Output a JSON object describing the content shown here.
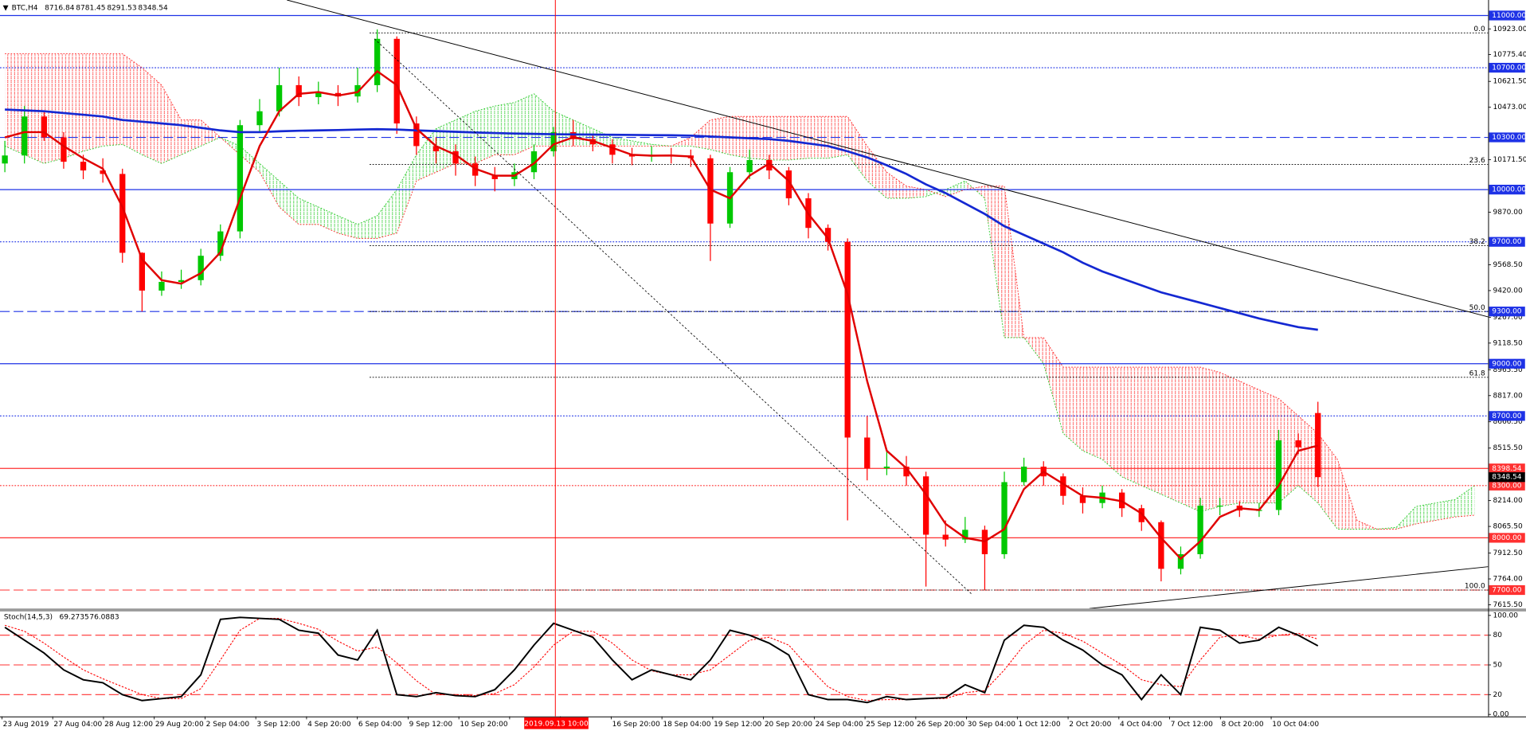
{
  "header": {
    "symbol": "BTC,H4"
  },
  "chart_data": {
    "type": "candlestick",
    "up_color": "#00c800",
    "down_color": "#ff0000",
    "open": [
      10150,
      10196,
      10420,
      10300,
      10160,
      10110,
      10090,
      9637,
      9420,
      9470,
      9480,
      9620,
      9760,
      10370,
      10450,
      10600,
      10531,
      10555,
      10535,
      10600,
      10866,
      10380,
      10250,
      10220,
      10150,
      10080,
      10060,
      10100,
      10220,
      10330,
      10290,
      10260,
      10200,
      10190,
      10200,
      10196,
      10180,
      9805,
      10100,
      10170,
      10110,
      9950,
      9780,
      9700,
      8576,
      8400,
      8409,
      8353,
      8018,
      7990,
      8046,
      7906,
      8320,
      8409,
      8353,
      8241,
      8200,
      8260,
      8170,
      8090,
      7822,
      7906,
      8185,
      8185,
      8157,
      8160,
      8560,
      8716.84
    ],
    "high": [
      10280,
      10480,
      10450,
      10330,
      10200,
      10180,
      10120,
      9640,
      9530,
      9540,
      9660,
      9800,
      10400,
      10520,
      10700,
      10650,
      10620,
      10600,
      10700,
      10920,
      10880,
      10420,
      10300,
      10260,
      10190,
      10130,
      10150,
      10260,
      10360,
      10400,
      10320,
      10290,
      10240,
      10250,
      10240,
      10230,
      10200,
      10130,
      10230,
      10200,
      10130,
      9980,
      9800,
      9720,
      8700,
      8500,
      8470,
      8380,
      8100,
      8120,
      8070,
      8380,
      8460,
      8440,
      8370,
      8290,
      8300,
      8280,
      8190,
      8100,
      7950,
      8230,
      8230,
      8210,
      8200,
      8620,
      8600,
      8781.45
    ],
    "low": [
      10100,
      10150,
      10280,
      10120,
      10060,
      10040,
      9580,
      9300,
      9390,
      9430,
      9450,
      9590,
      9720,
      10330,
      10420,
      10480,
      10490,
      10480,
      10500,
      10560,
      10320,
      10200,
      10150,
      10080,
      10020,
      9990,
      10020,
      10060,
      10190,
      10250,
      10220,
      10150,
      10140,
      10160,
      10150,
      10130,
      9590,
      9780,
      10060,
      10060,
      9910,
      9720,
      9650,
      8100,
      8330,
      8360,
      8300,
      7720,
      7950,
      7970,
      7700,
      7880,
      8300,
      8300,
      8190,
      8140,
      8170,
      8120,
      8040,
      7750,
      7790,
      7880,
      8130,
      8120,
      8120,
      8130,
      8480,
      8291.53
    ],
    "close": [
      10196,
      10420,
      10300,
      10160,
      10110,
      10090,
      9637,
      9420,
      9470,
      9480,
      9620,
      9760,
      10370,
      10450,
      10600,
      10531,
      10555,
      10535,
      10600,
      10866,
      10380,
      10250,
      10220,
      10150,
      10080,
      10060,
      10100,
      10220,
      10330,
      10290,
      10260,
      10200,
      10190,
      10200,
      10196,
      10180,
      9805,
      10100,
      10170,
      10110,
      9950,
      9780,
      9700,
      8576,
      8400,
      8409,
      8353,
      8018,
      7990,
      8046,
      7906,
      8320,
      8409,
      8353,
      8241,
      8200,
      8260,
      8170,
      8090,
      7822,
      7906,
      8185,
      8185,
      8157,
      8160,
      8560,
      8520,
      8348.54
    ],
    "ylim": [
      7594,
      11089
    ],
    "yticks": [
      {
        "value": 10923,
        "label": "10923.00"
      },
      {
        "value": 10775.4,
        "label": "10775.40"
      },
      {
        "value": 10621.5,
        "label": "10621.50"
      },
      {
        "value": 10473,
        "label": "10473.00"
      },
      {
        "value": 10171.5,
        "label": "10171.50"
      },
      {
        "value": 9870,
        "label": "9870.00"
      },
      {
        "value": 9568.5,
        "label": "9568.50"
      },
      {
        "value": 9420,
        "label": "9420.00"
      },
      {
        "value": 9267,
        "label": "9267.00"
      },
      {
        "value": 9118.5,
        "label": "9118.50"
      },
      {
        "value": 8965.5,
        "label": "8965.50"
      },
      {
        "value": 8817,
        "label": "8817.00"
      },
      {
        "value": 8666.5,
        "label": "8666.50"
      },
      {
        "value": 8515.5,
        "label": "8515.50"
      },
      {
        "value": 8214,
        "label": "8214.00"
      },
      {
        "value": 8065.5,
        "label": "8065.50"
      },
      {
        "value": 7912.5,
        "label": "7912.50"
      },
      {
        "value": 7764,
        "label": "7764.00"
      },
      {
        "value": 7615.5,
        "label": "7615.50"
      }
    ],
    "x_labels": [
      "23 Aug 2019",
      "27 Aug 04:00",
      "28 Aug 12:00",
      "29 Aug 20:00",
      "2 Sep 04:00",
      "3 Sep 12:00",
      "4 Sep 20:00",
      "6 Sep 04:00",
      "9 Sep 12:00",
      "10 Sep 20:00",
      null,
      null,
      "16 Sep 20:00",
      "18 Sep 04:00",
      "19 Sep 12:00",
      "20 Sep 20:00",
      "24 Sep 04:00",
      "25 Sep 12:00",
      "26 Sep 20:00",
      "30 Sep 04:00",
      "1 Oct 12:00",
      "2 Oct 20:00",
      "4 Oct 04:00",
      "7 Oct 12:00",
      "8 Oct 20:00",
      "10 Oct 04:00"
    ],
    "crosshair_label": "2019.09.13 10:00",
    "overlays": [
      {
        "color": "#1428d2",
        "width": 2.2,
        "values": [
          10460,
          10455,
          10450,
          10440,
          10430,
          10420,
          10400,
          10390,
          10380,
          10370,
          10355,
          10340,
          10330,
          10330,
          10335,
          10338,
          10340,
          10342,
          10345,
          10347,
          10345,
          10340,
          10336,
          10332,
          10328,
          10325,
          10322,
          10320,
          10318,
          10317,
          10316,
          10315,
          10314,
          10313,
          10312,
          10310,
          10305,
          10300,
          10295,
          10290,
          10280,
          10265,
          10250,
          10220,
          10185,
          10140,
          10090,
          10030,
          9980,
          9920,
          9860,
          9790,
          9740,
          9690,
          9640,
          9580,
          9530,
          9490,
          9450,
          9410,
          9380,
          9350,
          9320,
          9290,
          9260,
          9235,
          9210,
          9195
        ]
      },
      {
        "color": "#e00000",
        "width": 2,
        "values": [
          10300,
          10330,
          10330,
          10250,
          10180,
          10120,
          9900,
          9600,
          9480,
          9460,
          9520,
          9640,
          9950,
          10250,
          10450,
          10550,
          10560,
          10540,
          10560,
          10680,
          10600,
          10350,
          10250,
          10200,
          10120,
          10080,
          10080,
          10150,
          10260,
          10300,
          10280,
          10240,
          10200,
          10195,
          10196,
          10190,
          10000,
          9950,
          10080,
          10150,
          10050,
          9860,
          9720,
          9400,
          8900,
          8500,
          8400,
          8250,
          8080,
          8000,
          7980,
          8050,
          8280,
          8380,
          8310,
          8240,
          8230,
          8210,
          8140,
          8000,
          7880,
          7980,
          8120,
          8170,
          8160,
          8300,
          8500,
          8530
        ]
      }
    ],
    "cloud": {
      "bull_color": "#32cd32",
      "bear_color": "#ff3030",
      "span_a": [
        10250,
        10200,
        10150,
        10180,
        10220,
        10250,
        10260,
        10200,
        10150,
        10200,
        10250,
        10300,
        10250,
        10150,
        10050,
        9950,
        9900,
        9850,
        9800,
        9850,
        10000,
        10200,
        10350,
        10400,
        10450,
        10480,
        10500,
        10550,
        10450,
        10400,
        10350,
        10300,
        10280,
        10260,
        10250,
        10250,
        10230,
        10200,
        10180,
        10170,
        10170,
        10180,
        10180,
        10200,
        10050,
        9950,
        9950,
        9960,
        10000,
        10050,
        9950,
        9150,
        9150,
        9000,
        8600,
        8500,
        8450,
        8350,
        8300,
        8250,
        8200,
        8150,
        8180,
        8200,
        8200,
        8200,
        8300,
        8200,
        8050,
        8050,
        8050,
        8060,
        8180,
        8200,
        8220,
        8300
      ],
      "span_b": [
        10780,
        10780,
        10780,
        10780,
        10780,
        10780,
        10780,
        10700,
        10600,
        10400,
        10400,
        10300,
        10200,
        10100,
        9900,
        9800,
        9800,
        9750,
        9720,
        9720,
        9750,
        10050,
        10100,
        10150,
        10150,
        10200,
        10200,
        10250,
        10250,
        10250,
        10250,
        10250,
        10250,
        10250,
        10250,
        10300,
        10400,
        10420,
        10420,
        10420,
        10420,
        10420,
        10420,
        10420,
        10250,
        10100,
        10020,
        10000,
        9960,
        10000,
        10020,
        10020,
        9150,
        9150,
        8980,
        8980,
        8980,
        8980,
        8980,
        8980,
        8980,
        8980,
        8950,
        8900,
        8850,
        8800,
        8700,
        8600,
        8450,
        8100,
        8050,
        8050,
        8080,
        8100,
        8120,
        8130
      ]
    },
    "levels": [
      {
        "value": 11000,
        "label": "11000.00",
        "color": "#1e32e6",
        "dash": "solid"
      },
      {
        "value": 10700,
        "label": "10700.00",
        "color": "#1e32e6",
        "dash": "dotted"
      },
      {
        "value": 10300,
        "label": "10300.00",
        "color": "#1e32e6",
        "dash": "dashed"
      },
      {
        "value": 10000,
        "label": "10000.00",
        "color": "#1e32e6",
        "dash": "solid"
      },
      {
        "value": 9700,
        "label": "9700.00",
        "color": "#1e32e6",
        "dash": "dotted"
      },
      {
        "value": 9300,
        "label": "9300.00",
        "color": "#1e32e6",
        "dash": "dashed"
      },
      {
        "value": 9000,
        "label": "9000.00",
        "color": "#1e32e6",
        "dash": "solid"
      },
      {
        "value": 8700,
        "label": "8700.00",
        "color": "#1e32e6",
        "dash": "dotted"
      },
      {
        "value": 8398.54,
        "color": "#ff3030",
        "dash": "solid"
      },
      {
        "value": 8300,
        "label": "8300.00",
        "color": "#ff3030",
        "dash": "dotted"
      },
      {
        "value": 8000,
        "label": "8000.00",
        "color": "#ff3030",
        "dash": "solid"
      },
      {
        "value": 7700,
        "label": "7700.00",
        "color": "#ff3030",
        "dash": "dashed"
      }
    ],
    "fibonacci": [
      {
        "label": "0.0",
        "value": 10900
      },
      {
        "label": "23.6",
        "value": 10145
      },
      {
        "label": "38.2",
        "value": 9678
      },
      {
        "label": "50.0",
        "value": 9300
      },
      {
        "label": "61.8",
        "value": 8922
      },
      {
        "label": "100.0",
        "value": 7700
      }
    ],
    "stochastic": {
      "title": "Stoch(14,5,3)",
      "k_color": "#000000",
      "d_color": "#ff0000",
      "level_color": "#ff3030",
      "ylim": [
        -3,
        105
      ],
      "yticks": [
        {
          "value": 100,
          "label": "100.00"
        },
        80,
        50,
        20,
        {
          "value": 0,
          "label": "0.00"
        }
      ],
      "levels": [
        80,
        50,
        20
      ],
      "k": [
        88,
        75,
        62,
        45,
        35,
        32,
        20,
        14,
        16,
        18,
        40,
        96,
        98,
        97,
        96,
        85,
        82,
        60,
        55,
        85,
        20,
        18,
        22,
        19,
        18,
        25,
        45,
        70,
        92,
        85,
        78,
        55,
        35,
        45,
        40,
        35,
        55,
        85,
        80,
        72,
        60,
        20,
        15,
        15,
        12,
        18,
        15,
        16,
        17,
        30,
        22,
        75,
        90,
        88,
        75,
        65,
        50,
        40,
        15,
        40,
        20,
        88,
        85,
        72,
        75,
        88,
        80,
        69.2735
      ],
      "d": [
        90,
        84,
        72,
        58,
        45,
        36,
        28,
        20,
        16,
        16,
        26,
        55,
        85,
        97,
        97,
        92,
        86,
        74,
        64,
        68,
        52,
        34,
        20,
        20,
        19,
        21,
        30,
        48,
        70,
        84,
        84,
        72,
        55,
        44,
        40,
        40,
        45,
        60,
        75,
        78,
        70,
        48,
        28,
        18,
        14,
        15,
        15,
        16,
        16,
        22,
        24,
        45,
        70,
        85,
        82,
        74,
        62,
        50,
        35,
        30,
        28,
        55,
        78,
        80,
        76,
        80,
        82,
        76.0883
      ]
    }
  }
}
